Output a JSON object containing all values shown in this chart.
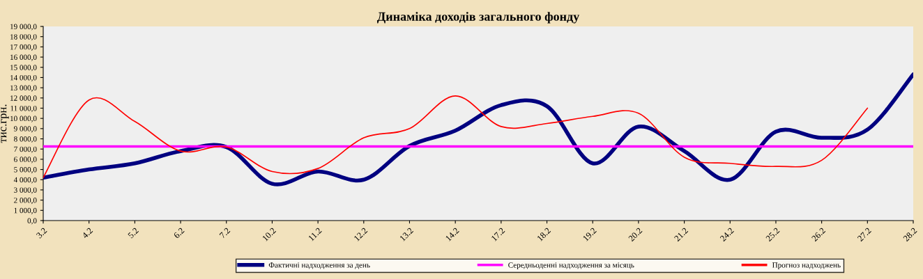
{
  "chart_data": {
    "type": "line",
    "title": "Динаміка доходів загального фонду",
    "ylabel": "тис.грн.",
    "categories": [
      "3.2",
      "4.2",
      "5.2",
      "6.2",
      "7.2",
      "10.2",
      "11.2",
      "12.2",
      "13.2",
      "14.2",
      "17.2",
      "18.2",
      "19.2",
      "20.2",
      "21.2",
      "24.2",
      "25.2",
      "26.2",
      "27.2",
      "28.2"
    ],
    "series": [
      {
        "name": "Фактичні надходження за день",
        "color": "#000080",
        "values": [
          4200,
          5000,
          5600,
          6800,
          7200,
          3600,
          4800,
          4000,
          7300,
          8800,
          11300,
          11200,
          5600,
          9200,
          6800,
          4000,
          8700,
          8100,
          8900,
          14300
        ]
      },
      {
        "name": "Середньоденні надходження за місяць",
        "color": "#ff00ff",
        "values": [
          7250,
          7250,
          7250,
          7250,
          7250,
          7250,
          7250,
          7250,
          7250,
          7250,
          7250,
          7250,
          7250,
          7250,
          7250,
          7250,
          7250,
          7250,
          7250,
          7250
        ]
      },
      {
        "name": "Прогноз надходжень",
        "color": "#ff0000",
        "values": [
          4200,
          11800,
          9700,
          6800,
          7200,
          4800,
          5100,
          8100,
          9000,
          12200,
          9200,
          9500,
          10200,
          10500,
          6200,
          5600,
          5300,
          5900,
          11000,
          null
        ]
      }
    ],
    "ylim": [
      0,
      19000
    ],
    "yticks": [
      {
        "value": 0,
        "label": "0,0"
      },
      {
        "value": 1000,
        "label": "1 000,0"
      },
      {
        "value": 2000,
        "label": "2 000,0"
      },
      {
        "value": 3000,
        "label": "3 000,0"
      },
      {
        "value": 4000,
        "label": "4 000,0"
      },
      {
        "value": 5000,
        "label": "5 000,0"
      },
      {
        "value": 6000,
        "label": "6 000,0"
      },
      {
        "value": 7000,
        "label": "7 000,0"
      },
      {
        "value": 8000,
        "label": "8 000,0"
      },
      {
        "value": 9000,
        "label": "9 000,0"
      },
      {
        "value": 10000,
        "label": "10 000,0"
      },
      {
        "value": 11000,
        "label": "11 000,0"
      },
      {
        "value": 12000,
        "label": "12 000,0"
      },
      {
        "value": 13000,
        "label": "13 000,0"
      },
      {
        "value": 14000,
        "label": "14 000,0"
      },
      {
        "value": 15000,
        "label": "15 000,0"
      },
      {
        "value": 16000,
        "label": "16 000,0"
      },
      {
        "value": 17000,
        "label": "17 000,0"
      },
      {
        "value": 18000,
        "label": "18 000,0"
      },
      {
        "value": 19000,
        "label": "19 000,0"
      }
    ],
    "grid": false,
    "legend": "bottom",
    "marker": "none",
    "line_style": "solid"
  }
}
